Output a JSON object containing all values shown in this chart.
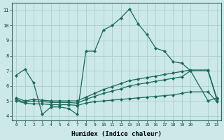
{
  "xlabel": "Humidex (Indice chaleur)",
  "xlim": [
    -0.5,
    23.5
  ],
  "ylim": [
    3.7,
    11.5
  ],
  "yticks": [
    4,
    5,
    6,
    7,
    8,
    9,
    10,
    11
  ],
  "xticks": [
    0,
    1,
    2,
    3,
    4,
    5,
    6,
    7,
    8,
    9,
    10,
    11,
    12,
    13,
    14,
    15,
    16,
    17,
    18,
    19,
    20,
    22,
    23
  ],
  "xtick_labels": [
    "0",
    "1",
    "2",
    "3",
    "4",
    "5",
    "6",
    "7",
    "8",
    "9",
    "10",
    "11",
    "12",
    "13",
    "14",
    "15",
    "16",
    "17",
    "18",
    "19",
    "20",
    "22",
    "23"
  ],
  "bg_color": "#cce8e8",
  "grid_color": "#aacece",
  "line_color": "#1a6b5a",
  "line_width": 0.9,
  "marker": "D",
  "marker_size": 2.0,
  "series1_x": [
    0,
    1,
    2,
    3,
    4,
    5,
    6,
    7,
    8,
    9,
    10,
    11,
    12,
    13,
    14,
    15,
    16,
    17,
    18,
    19,
    20,
    22,
    23
  ],
  "series1_y": [
    6.7,
    7.1,
    6.2,
    4.1,
    4.6,
    4.6,
    4.5,
    4.1,
    8.3,
    8.3,
    9.7,
    10.0,
    10.5,
    11.1,
    10.1,
    9.4,
    8.5,
    8.3,
    7.6,
    7.5,
    7.0,
    5.0,
    5.2
  ],
  "series2_x": [
    0,
    1,
    2,
    3,
    4,
    5,
    6,
    7,
    8,
    9,
    10,
    11,
    12,
    13,
    14,
    15,
    16,
    17,
    18,
    19,
    20,
    22,
    23
  ],
  "series2_y": [
    5.0,
    4.85,
    4.8,
    4.8,
    4.75,
    4.75,
    4.75,
    4.7,
    4.85,
    4.95,
    5.0,
    5.05,
    5.1,
    5.15,
    5.2,
    5.25,
    5.3,
    5.35,
    5.4,
    5.5,
    5.6,
    5.6,
    4.95
  ],
  "series3_x": [
    0,
    1,
    2,
    3,
    4,
    5,
    6,
    7,
    8,
    9,
    10,
    11,
    12,
    13,
    14,
    15,
    16,
    17,
    18,
    19,
    20,
    22,
    23
  ],
  "series3_y": [
    5.1,
    4.9,
    5.0,
    4.95,
    4.9,
    4.9,
    4.9,
    4.85,
    5.1,
    5.3,
    5.5,
    5.65,
    5.8,
    6.0,
    6.1,
    6.2,
    6.3,
    6.4,
    6.5,
    6.6,
    7.0,
    7.0,
    5.1
  ],
  "series4_x": [
    0,
    1,
    2,
    3,
    4,
    5,
    6,
    7,
    8,
    9,
    10,
    11,
    12,
    13,
    14,
    15,
    16,
    17,
    18,
    19,
    20,
    22,
    23
  ],
  "series4_y": [
    5.2,
    5.0,
    5.1,
    5.05,
    5.0,
    5.0,
    5.0,
    5.0,
    5.25,
    5.5,
    5.75,
    5.95,
    6.15,
    6.35,
    6.45,
    6.55,
    6.65,
    6.75,
    6.85,
    6.95,
    7.05,
    7.05,
    5.2
  ]
}
